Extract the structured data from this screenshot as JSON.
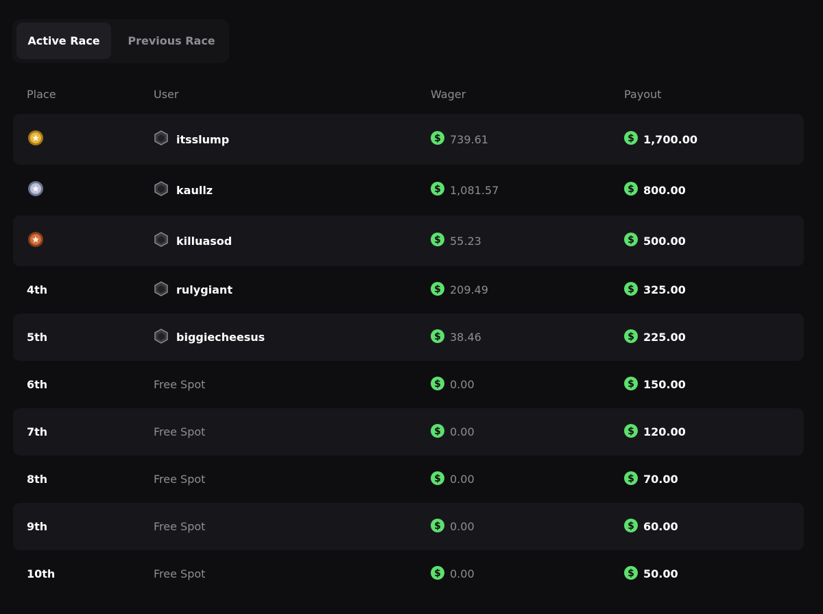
{
  "tabs": [
    "Active Race",
    "Previous Race"
  ],
  "table": {
    "headers": [
      "Place",
      "User",
      "Wager",
      "Payout"
    ],
    "rows": [
      {
        "place": null,
        "user": "itsslump",
        "wager": "739.61",
        "payout": "1,700.00"
      },
      {
        "place": null,
        "user": "kaullz",
        "wager": "1,081.57",
        "payout": "800.00"
      },
      {
        "place": null,
        "user": "killuasod",
        "wager": "55.23",
        "payout": "500.00"
      },
      {
        "place": "4th",
        "user": "rulygiant",
        "wager": "209.49",
        "payout": "325.00"
      },
      {
        "place": "5th",
        "user": "biggiecheesus",
        "wager": "38.46",
        "payout": "225.00"
      },
      {
        "place": "6th",
        "user": "Free Spot",
        "wager": "0.00",
        "payout": "150.00"
      },
      {
        "place": "7th",
        "user": "Free Spot",
        "wager": "0.00",
        "payout": "120.00"
      },
      {
        "place": "8th",
        "user": "Free Spot",
        "wager": "0.00",
        "payout": "70.00"
      },
      {
        "place": "9th",
        "user": "Free Spot",
        "wager": "0.00",
        "payout": "60.00"
      },
      {
        "place": "10th",
        "user": "Free Spot",
        "wager": "0.00",
        "payout": "50.00"
      }
    ]
  }
}
